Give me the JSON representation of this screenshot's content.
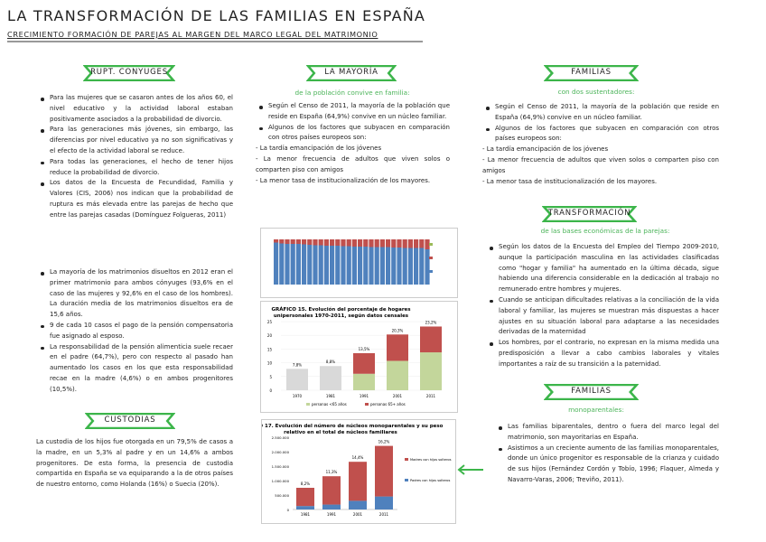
{
  "header": {
    "title": "LA TRANSFORMACIÓN DE LAS FAMILIAS EN ESPAÑA",
    "subtitle": "CRECIMIENTO FORMACIÓN DE PAREJAS AL MARGEN DEL MARCO LEGAL DEL MATRIMONIO"
  },
  "colors": {
    "accent": "#3cb54a",
    "red": "#c0504d",
    "blue": "#4f81bd",
    "green": "#c3d69b",
    "grey": "#d9d9d9"
  },
  "ruptura": {
    "label": "RUPT. CONYUGES",
    "bullets": [
      "Para las mujeres que se casaron antes de los años 60, el nivel educativo y la actividad laboral estaban positivamente asociados a la probabilidad de divorcio.",
      "Para las generaciones más jóvenes, sin embargo, las diferencias por nivel educativo ya no son significativas y el efecto de la actividad laboral se reduce.",
      "Para todas las generaciones, el hecho de tener hijos reduce la probabilidad de divorcio.",
      "Los datos de la Encuesta de Fecundidad, Familia y Valores (CIS, 2006) nos indican que la probabilidad de ruptura es más elevada entre las parejas de hecho que entre las parejas casadas (Domínguez Folgueras, 2011)"
    ],
    "bullets2": [
      "La mayoría de los matrimonios disueltos en 2012 eran el primer matrimonio para ambos cónyuges (93,6% en el caso de las mujeres y 92,6% en el caso de los hombres). La duración media de los matrimonios disueltos era de 15,6 años.",
      "9 de cada 10 casos el pago de la pensión compensatoria fue asignado al esposo.",
      "La responsabilidad de la pensión alimenticia suele recaer en el padre (64,7%), pero con respecto al pasado han aumentado los casos en los que esta responsabilidad recae en la madre (4,6%) o en ambos progenitores (10,5%)."
    ]
  },
  "custodias": {
    "label": "CUSTODIAS",
    "text": "La custodia de los hijos fue otorgada en un 79,5% de casos a la madre, en un 5,3% al padre y en un 14,6% a ambos progenitores. De esta forma, la presencia de custodia compartida en España se va equiparando a la de otros países de nuestro entorno, como Holanda (16%) o Suecia (20%)."
  },
  "mayoria": {
    "label": "LA MAYORÍA",
    "sub": "de la población convive en familia:",
    "bullets": [
      "Según el Censo de 2011, la mayoría de la población que reside en España (64,9%) convive en un núcleo familiar.",
      "Algunos de los factores que subyacen en comparación con otros países europeos son:"
    ],
    "dashes": [
      "- La tardía emancipación de los jóvenes",
      "- La menor frecuencia de adultos que viven solos o comparten piso con amigos",
      "- La menor tasa de institucionalización de los mayores."
    ]
  },
  "sustentadores": {
    "label": "FAMILIAS",
    "sub": "con dos sustentadores:",
    "bullets": [
      "Según el Censo de 2011, la mayoría de la población que reside en España (64,9%) convive en un núcleo familiar.",
      "Algunos de los factores que subyacen en comparación con otros países europeos son:"
    ],
    "dashes": [
      "- La tardía emancipación de los jóvenes",
      "- La menor frecuencia de adultos que viven solos o comparten piso con amigos",
      "- La menor tasa de institucionalización de los mayores."
    ]
  },
  "transformacion": {
    "label": "TRANSFORMACIÓN",
    "sub": "de las bases económicas de la parejas:",
    "bullets": [
      "Según los datos de la Encuesta del Empleo del Tiempo 2009-2010, aunque la participación masculina en las actividades clasificadas como \"hogar y familia\" ha aumentado en la última década, sigue habiendo una diferencia considerable en la dedicación al trabajo no remunerado entre hombres y mujeres.",
      "Cuando se anticipan dificultades relativas a la conciliación de la vida laboral y familiar, las mujeres se muestran más dispuestas a hacer ajustes en su situación laboral para adaptarse a las necesidades derivadas de la maternidad",
      "Los hombres, por el contrario, no expresan en la misma medida una predisposición a llevar a cabo cambios laborales y vitales importantes a raíz de su transición a la paternidad."
    ]
  },
  "monoparentales": {
    "label": "FAMILIAS",
    "sub": "monoparentales:",
    "bullets": [
      "Las familias biparentales, dentro o fuera del marco legal del matrimonio, son mayoritarias en España.",
      "Asistimos a un creciente aumento de las familias monoparentales, donde un único progenitor es responsable de la crianza y cuidado de sus hijos (Fernández Cordón y Tobío, 1996; Flaquer, Almeda y Navarro-Varas, 2006; Treviño, 2011)."
    ]
  },
  "chart_data": [
    {
      "type": "bar",
      "stacked": true,
      "title": "",
      "categories_count": 28,
      "series": [
        {
          "name": "blue",
          "values": [
            93,
            91,
            90,
            90,
            90,
            89,
            88,
            87,
            87,
            86,
            86,
            86,
            85,
            85,
            84,
            84,
            84,
            83,
            83,
            83,
            83,
            82,
            82,
            81,
            81,
            81,
            81,
            78
          ]
        },
        {
          "name": "red",
          "values": [
            7,
            9,
            10,
            10,
            10,
            11,
            12,
            13,
            13,
            14,
            14,
            14,
            15,
            15,
            16,
            16,
            16,
            17,
            17,
            17,
            17,
            18,
            18,
            19,
            19,
            19,
            19,
            22
          ]
        }
      ],
      "ylim": [
        0,
        100
      ]
    },
    {
      "type": "bar",
      "stacked": true,
      "title": "GRÁFICO 15. Evolución del porcentaje de hogares unipersonales 1970-2011, según datos censales",
      "categories": [
        "1970",
        "1981",
        "1991",
        "2001",
        "2011"
      ],
      "series": [
        {
          "name": "total",
          "values": [
            7.8,
            8.8,
            0,
            0,
            0
          ]
        },
        {
          "name": "personas <65 años",
          "values": [
            0,
            0,
            6.0,
            10.7,
            13.8
          ]
        },
        {
          "name": "personas 65+ años",
          "values": [
            0,
            0,
            7.5,
            9.6,
            9.4
          ]
        }
      ],
      "labels": [
        "7,8%",
        "8,8%",
        "13,5%",
        "20,3%",
        "23,2%"
      ],
      "yticks": [
        "0",
        "5",
        "10",
        "15",
        "20",
        "25"
      ],
      "ylim": [
        0,
        25
      ],
      "legend": [
        "personas <65 años",
        "personas 65+ años"
      ]
    },
    {
      "type": "bar",
      "stacked": true,
      "title": "GRÁFICO 17. Evolución del número de núcleos monoparentales y su peso relativo en el total de núcleos familiares",
      "categories": [
        "1981",
        "1991",
        "2001",
        "2011"
      ],
      "series": [
        {
          "name": "Padres con hijos solteros",
          "values": [
            120000,
            170000,
            300000,
            450000
          ]
        },
        {
          "name": "Madres con hijos solteros",
          "values": [
            630000,
            980000,
            1350000,
            1750000
          ]
        }
      ],
      "labels": [
        "8,2%",
        "11,3%",
        "14,4%",
        "16,2%"
      ],
      "yticks": [
        "0",
        "500.000",
        "1.000.000",
        "1.500.000",
        "2.000.000",
        "2.500.000"
      ],
      "ylim": [
        0,
        2500000
      ],
      "legend": [
        "Madres con hijos solteros",
        "Padres con hijos solteros"
      ]
    }
  ]
}
